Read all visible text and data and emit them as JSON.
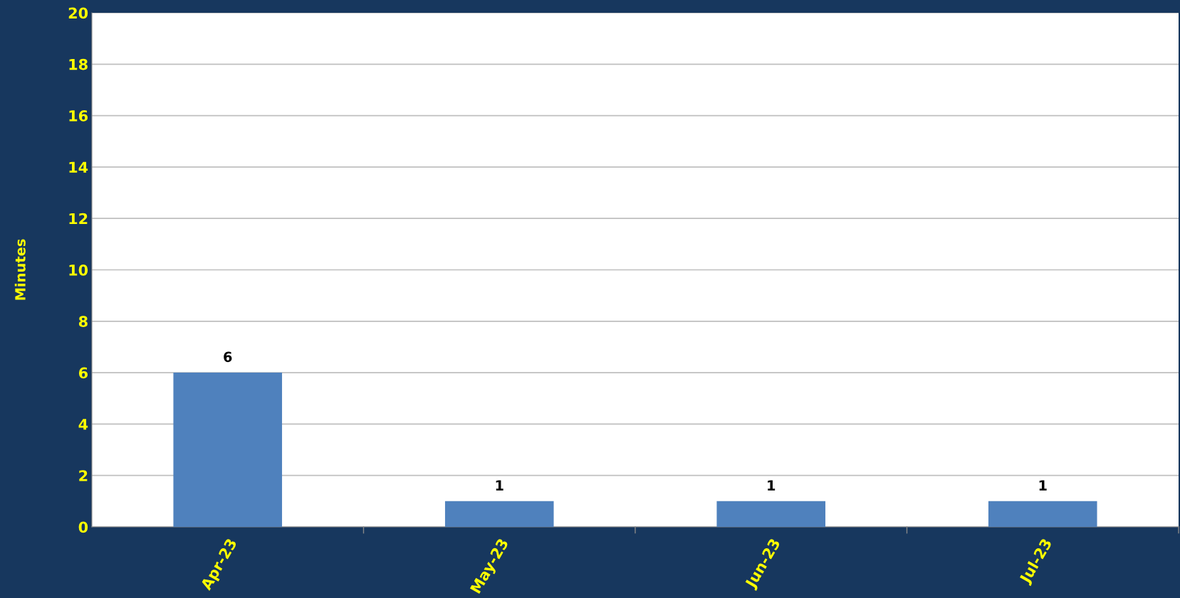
{
  "chart_data": {
    "type": "bar",
    "ylabel": "Minutes",
    "categories": [
      "Apr-23",
      "May-23",
      "Jun-23",
      "Jul-23"
    ],
    "values": [
      6,
      1,
      1,
      1
    ],
    "color": "#4f81bd",
    "ylim": [
      0,
      20
    ],
    "yticks": [
      0,
      2,
      4,
      6,
      8,
      10,
      12,
      14,
      16,
      18,
      20
    ],
    "grid": "y",
    "data_labels": true
  }
}
